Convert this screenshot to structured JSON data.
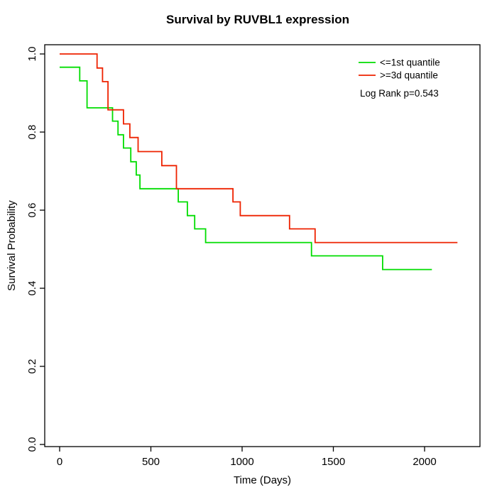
{
  "chart_data": {
    "type": "line",
    "subtype": "step-survival",
    "title": "Survival by RUVBL1 expression",
    "xlabel": "Time (Days)",
    "ylabel": "Survival Probability",
    "xlim": [
      0,
      2200
    ],
    "ylim": [
      0.0,
      1.0
    ],
    "grid": false,
    "legend_position": "top-right",
    "annotation": "Log Rank p=0.543",
    "xticks": [
      0,
      500,
      1000,
      1500,
      2000
    ],
    "xtick_labels": [
      "0",
      "500",
      "1000",
      "1500",
      "2000"
    ],
    "yticks": [
      0.0,
      0.2,
      0.4,
      0.6,
      0.8,
      1.0
    ],
    "ytick_labels": [
      "0.0",
      "0.2",
      "0.4",
      "0.6",
      "0.8",
      "1.0"
    ],
    "series": [
      {
        "name": "<=1st quantile",
        "color": "#00dd00",
        "points": [
          [
            0,
            0.966
          ],
          [
            110,
            0.931
          ],
          [
            150,
            0.862
          ],
          [
            290,
            0.828
          ],
          [
            320,
            0.793
          ],
          [
            350,
            0.759
          ],
          [
            390,
            0.724
          ],
          [
            420,
            0.69
          ],
          [
            440,
            0.655
          ],
          [
            650,
            0.621
          ],
          [
            700,
            0.586
          ],
          [
            740,
            0.552
          ],
          [
            800,
            0.517
          ],
          [
            1380,
            0.483
          ],
          [
            1770,
            0.448
          ],
          [
            2040,
            0.448
          ]
        ]
      },
      {
        "name": ">=3d quantile",
        "color": "#ee2200",
        "points": [
          [
            0,
            1.0
          ],
          [
            205,
            0.964
          ],
          [
            235,
            0.929
          ],
          [
            265,
            0.857
          ],
          [
            350,
            0.821
          ],
          [
            385,
            0.786
          ],
          [
            430,
            0.75
          ],
          [
            560,
            0.714
          ],
          [
            640,
            0.655
          ],
          [
            950,
            0.621
          ],
          [
            990,
            0.586
          ],
          [
            1260,
            0.552
          ],
          [
            1400,
            0.517
          ],
          [
            2180,
            0.517
          ]
        ]
      }
    ]
  }
}
